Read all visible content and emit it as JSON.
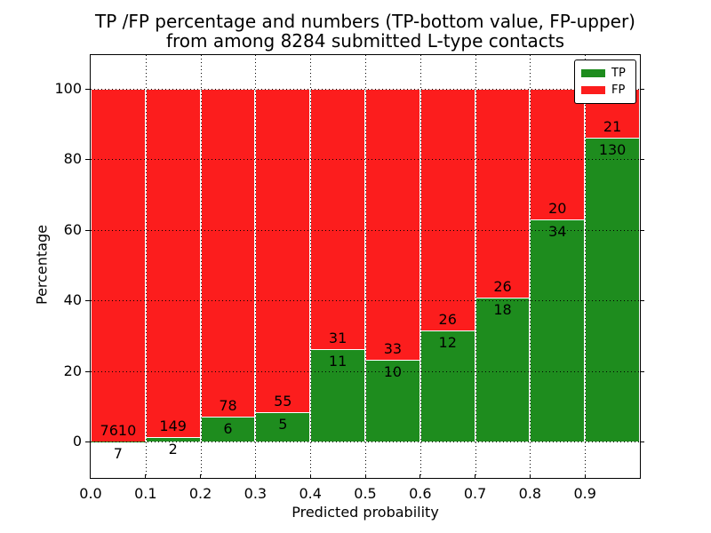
{
  "figure": {
    "title_line1": "TP /FP percentage and numbers (TP-bottom value, FP-upper)",
    "title_line2": "from among 8284 submitted L-type contacts",
    "total_submitted": 8284
  },
  "chart_data": {
    "type": "bar",
    "stacked": true,
    "normalized_to_percent": true,
    "title": "TP /FP percentage and numbers (TP-bottom value, FP-upper)\nfrom among 8284 submitted L-type contacts",
    "xlabel": "Predicted probability",
    "ylabel": "Percentage",
    "xlim": [
      0.0,
      1.0
    ],
    "ylim": [
      -11,
      110
    ],
    "grid": "dotted",
    "x_tick_labels": [
      "0.0",
      "0.1",
      "0.2",
      "0.3",
      "0.4",
      "0.5",
      "0.6",
      "0.7",
      "0.8",
      "0.9"
    ],
    "y_ticks": [
      0,
      20,
      40,
      60,
      80,
      100
    ],
    "colors": {
      "tp": "#1e8c1e",
      "fp": "#fc1d1d"
    },
    "legend": {
      "position": "upper right",
      "entries": [
        {
          "label": "TP",
          "color": "#1e8c1e"
        },
        {
          "label": "FP",
          "color": "#fc1d1d"
        }
      ]
    },
    "bins": [
      {
        "range": "0.0-0.1",
        "tp": 7,
        "fp": 7610
      },
      {
        "range": "0.1-0.2",
        "tp": 2,
        "fp": 149
      },
      {
        "range": "0.2-0.3",
        "tp": 6,
        "fp": 78
      },
      {
        "range": "0.3-0.4",
        "tp": 5,
        "fp": 55
      },
      {
        "range": "0.4-0.5",
        "tp": 11,
        "fp": 31
      },
      {
        "range": "0.5-0.6",
        "tp": 10,
        "fp": 33
      },
      {
        "range": "0.6-0.7",
        "tp": 12,
        "fp": 26
      },
      {
        "range": "0.7-0.8",
        "tp": 18,
        "fp": 26
      },
      {
        "range": "0.8-0.9",
        "tp": 34,
        "fp": 20
      },
      {
        "range": "0.9-1.0",
        "tp": 130,
        "fp": 21
      }
    ]
  }
}
